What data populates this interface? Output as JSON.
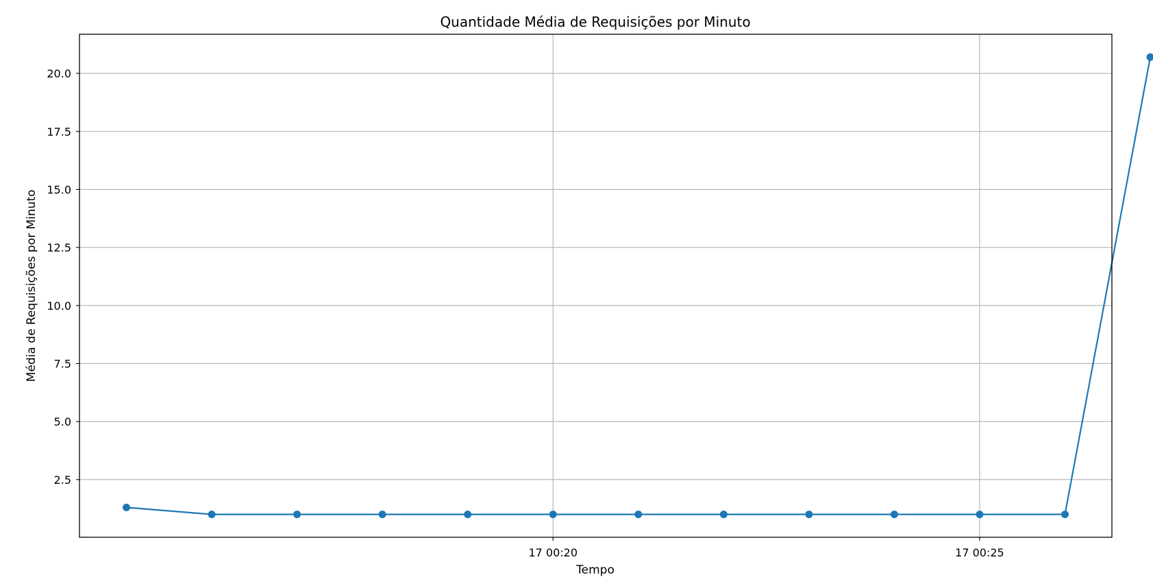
{
  "chart_data": {
    "type": "line",
    "title": "Quantidade Média de Requisições por Minuto",
    "xlabel": "Tempo",
    "ylabel": "Média de Requisições por Minuto",
    "x": [
      "17 00:15",
      "17 00:16",
      "17 00:17",
      "17 00:18",
      "17 00:19",
      "17 00:20",
      "17 00:21",
      "17 00:22",
      "17 00:23",
      "17 00:24",
      "17 00:25",
      "17 00:26",
      "17 00:27"
    ],
    "x_minutes": [
      15,
      16,
      17,
      18,
      19,
      20,
      21,
      22,
      23,
      24,
      25,
      26,
      27
    ],
    "series": [
      {
        "values": [
          1.3,
          1.0,
          1.0,
          1.0,
          1.0,
          1.0,
          1.0,
          1.0,
          1.0,
          1.0,
          1.0,
          1.0,
          20.7
        ]
      }
    ],
    "xticks": [
      {
        "minute": 20,
        "label": "17 00:20"
      },
      {
        "minute": 25,
        "label": "17 00:25"
      }
    ],
    "yticks": [
      {
        "value": 2.5,
        "label": "2.5"
      },
      {
        "value": 5.0,
        "label": "5.0"
      },
      {
        "value": 7.5,
        "label": "7.5"
      },
      {
        "value": 10.0,
        "label": "10.0"
      },
      {
        "value": 12.5,
        "label": "12.5"
      },
      {
        "value": 15.0,
        "label": "15.0"
      },
      {
        "value": 17.5,
        "label": "17.5"
      },
      {
        "value": 20.0,
        "label": "20.0"
      }
    ],
    "xlim": [
      14.45,
      26.55
    ],
    "ylim": [
      0.015,
      21.685
    ],
    "grid": true,
    "line_color": "#1f77b4",
    "marker": "circle"
  }
}
